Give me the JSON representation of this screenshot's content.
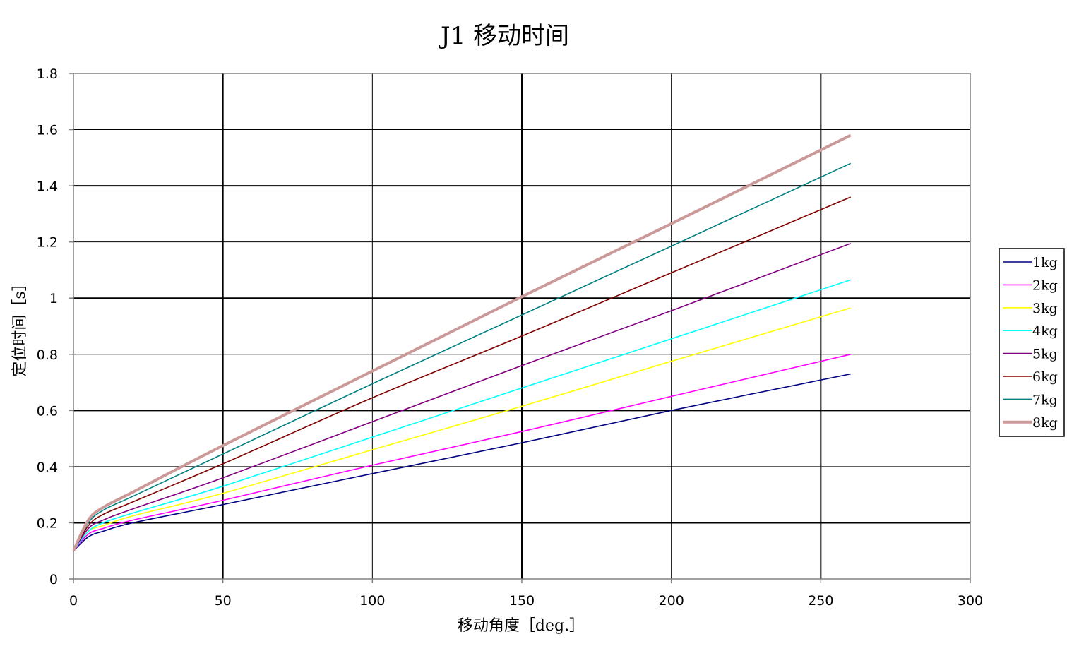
{
  "chart_data": {
    "type": "line",
    "title": "J1 移动时间",
    "xlabel": "移动角度［deg.］",
    "ylabel": "定位时间［s］",
    "xlim": [
      0,
      300
    ],
    "ylim": [
      0,
      1.8
    ],
    "xticks": [
      0,
      50,
      100,
      150,
      200,
      250,
      300
    ],
    "yticks": [
      0,
      0.2,
      0.4,
      0.6,
      0.8,
      1,
      1.2,
      1.4,
      1.6,
      1.8
    ],
    "grid": true,
    "legend_position": "right",
    "x": [
      0,
      5,
      10,
      20,
      50,
      100,
      150,
      200,
      260
    ],
    "series": [
      {
        "name": "1kg",
        "color": "#000080",
        "values": [
          0.1,
          0.15,
          0.17,
          0.2,
          0.265,
          0.375,
          0.485,
          0.6,
          0.73
        ]
      },
      {
        "name": "2kg",
        "color": "#ff00ff",
        "values": [
          0.1,
          0.16,
          0.18,
          0.21,
          0.28,
          0.405,
          0.525,
          0.65,
          0.8
        ]
      },
      {
        "name": "3kg",
        "color": "#ffff00",
        "values": [
          0.1,
          0.17,
          0.19,
          0.225,
          0.305,
          0.46,
          0.615,
          0.775,
          0.965
        ]
      },
      {
        "name": "4kg",
        "color": "#00ffff",
        "values": [
          0.1,
          0.17,
          0.2,
          0.235,
          0.33,
          0.505,
          0.68,
          0.855,
          1.065
        ]
      },
      {
        "name": "5kg",
        "color": "#800080",
        "values": [
          0.1,
          0.18,
          0.21,
          0.25,
          0.36,
          0.56,
          0.76,
          0.955,
          1.195
        ]
      },
      {
        "name": "6kg",
        "color": "#800000",
        "values": [
          0.1,
          0.19,
          0.23,
          0.275,
          0.41,
          0.645,
          0.865,
          1.09,
          1.36
        ]
      },
      {
        "name": "7kg",
        "color": "#008080",
        "values": [
          0.1,
          0.2,
          0.245,
          0.295,
          0.445,
          0.695,
          0.94,
          1.185,
          1.48
        ]
      },
      {
        "name": "8kg",
        "color": "#cc9999",
        "values": [
          0.1,
          0.21,
          0.255,
          0.31,
          0.475,
          0.74,
          1.005,
          1.265,
          1.58
        ]
      }
    ]
  }
}
